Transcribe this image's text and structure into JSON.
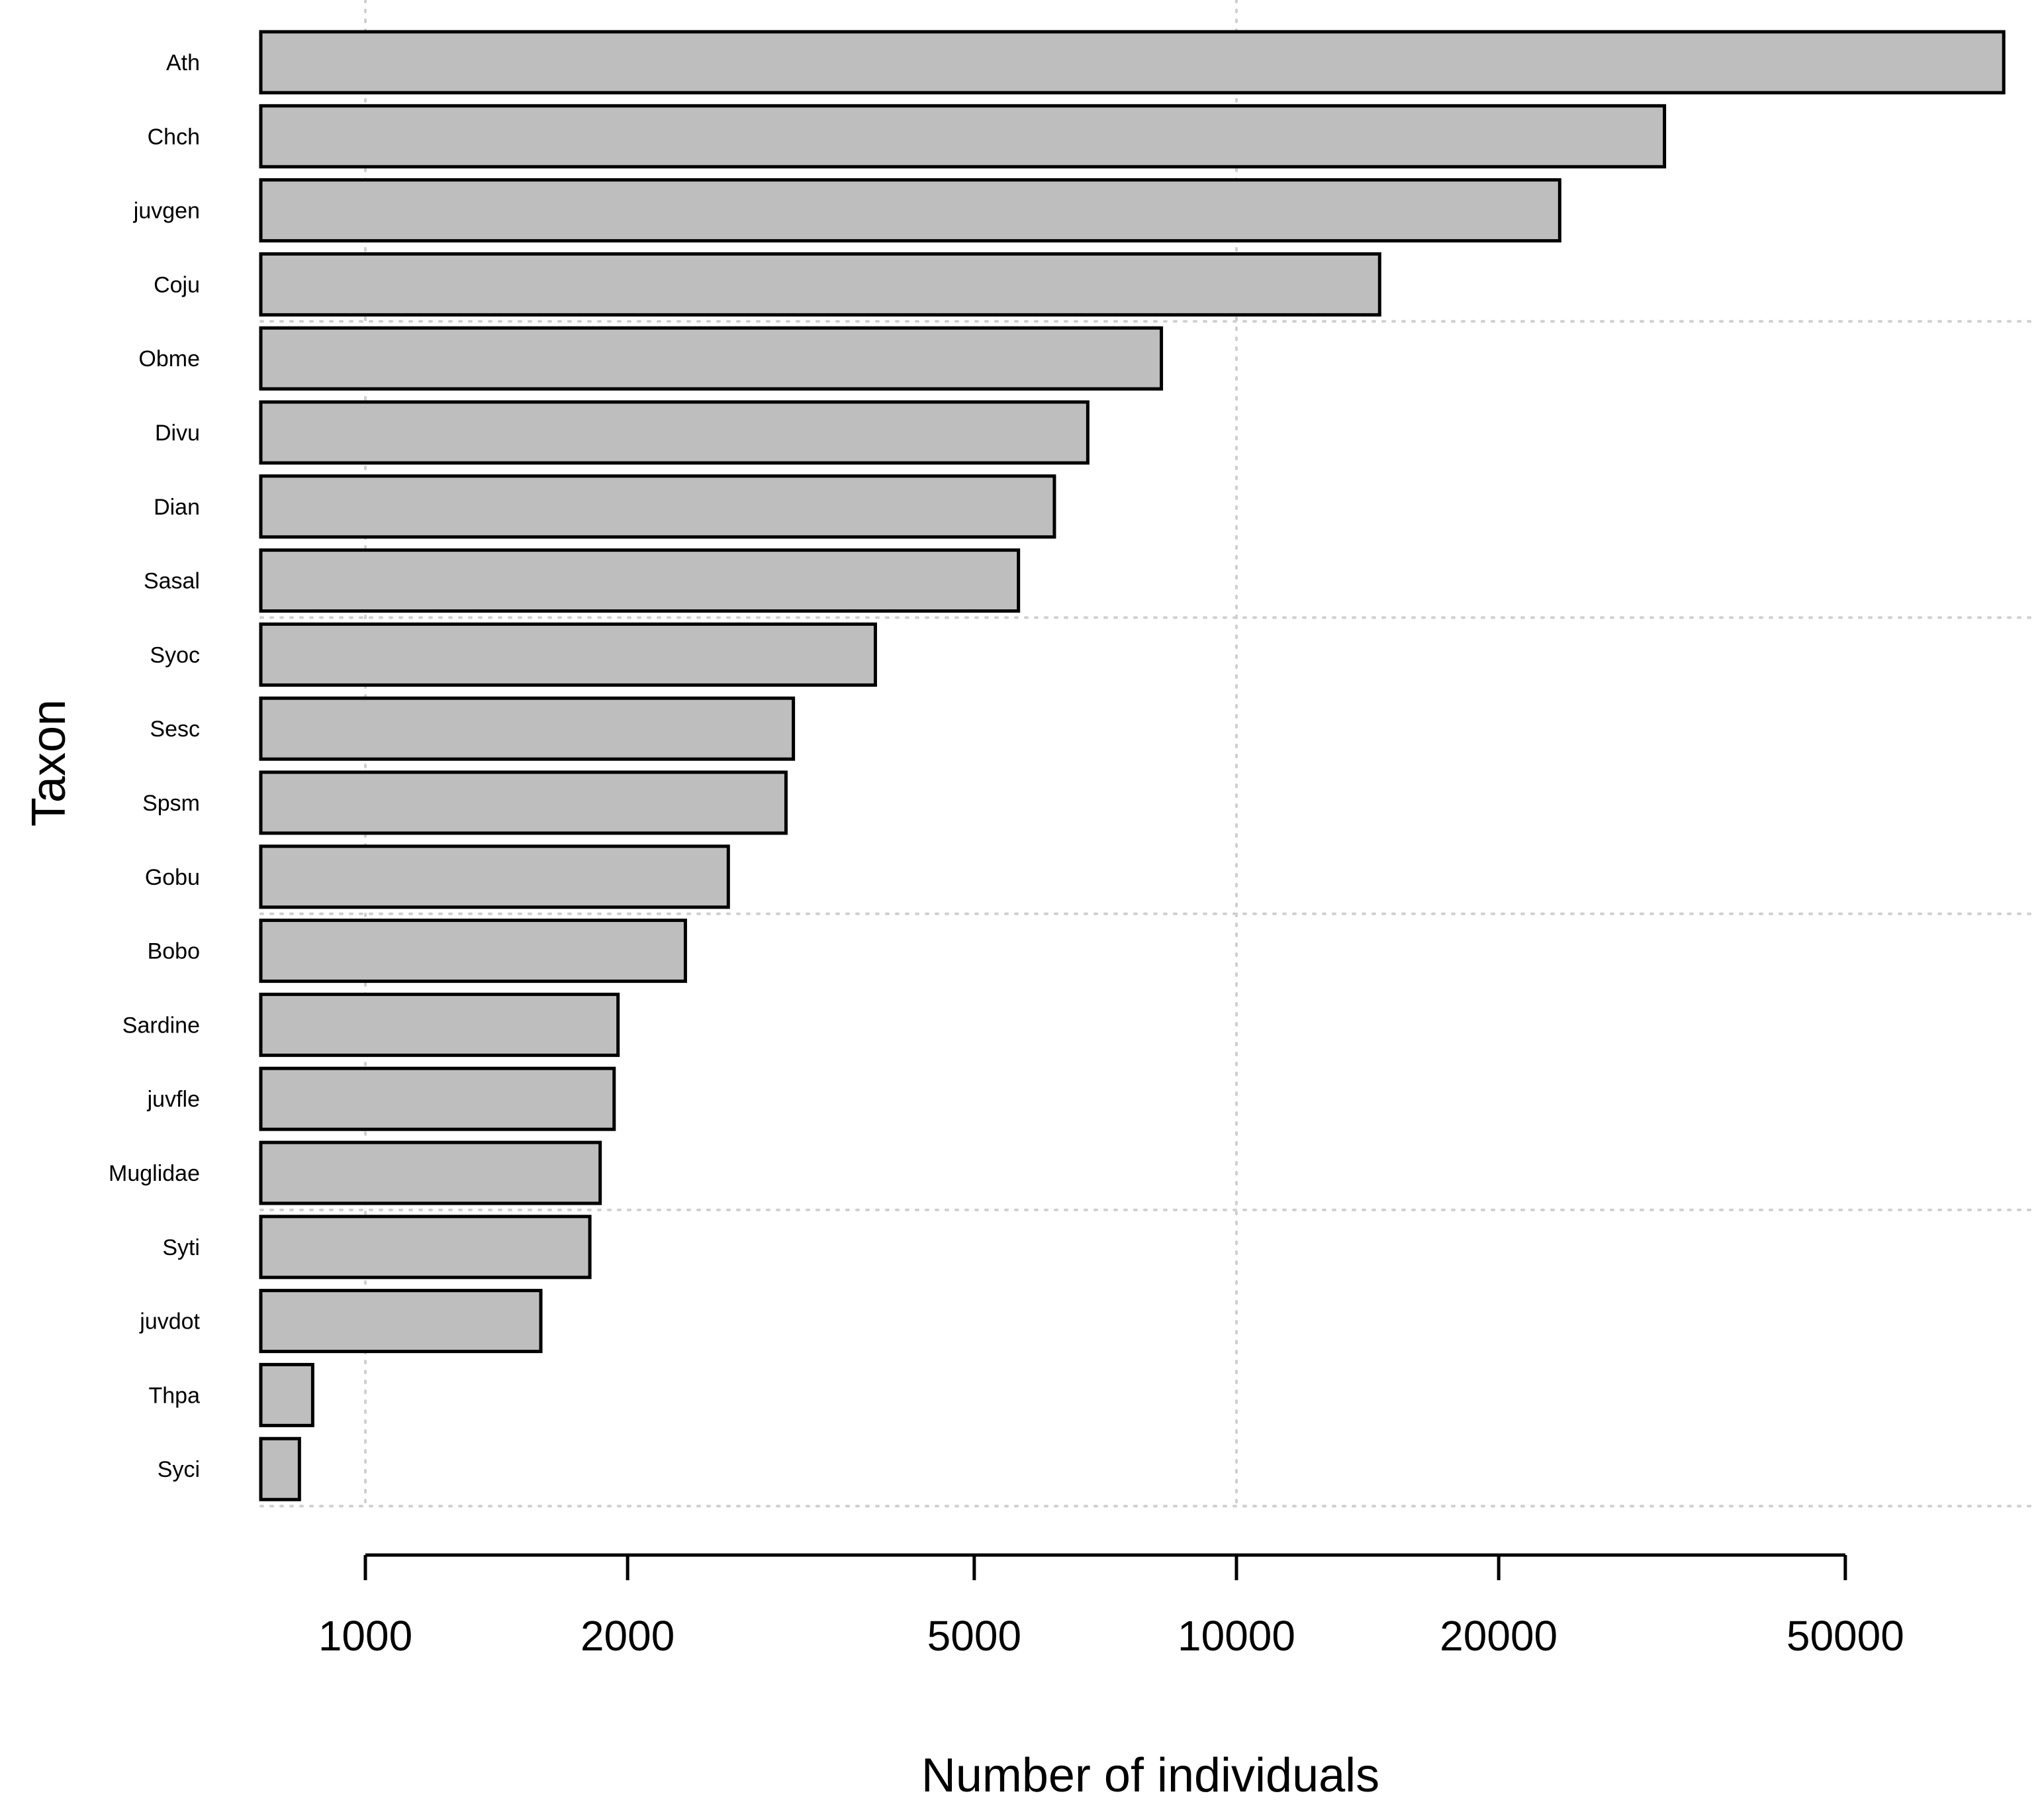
{
  "chart_data": {
    "type": "bar",
    "orientation": "horizontal",
    "categories": [
      "Ath",
      "Chch",
      "juvgen",
      "Coju",
      "Obme",
      "Divu",
      "Dian",
      "Sasal",
      "Syoc",
      "Sesc",
      "Spsm",
      "Gobu",
      "Bobo",
      "Sardine",
      "juvfle",
      "Muglidae",
      "Syti",
      "juvdot",
      "Thpa",
      "Syci"
    ],
    "values": [
      76000,
      31000,
      23500,
      14600,
      8200,
      6750,
      6180,
      5620,
      3850,
      3100,
      3040,
      2610,
      2330,
      1950,
      1930,
      1860,
      1810,
      1590,
      870,
      840
    ],
    "xlabel": "Number of individuals",
    "ylabel": "Taxon",
    "x_scale": "log",
    "xlim": [
      760,
      76000
    ],
    "x_ticks": [
      1000,
      2000,
      5000,
      10000,
      20000,
      50000
    ],
    "x_tick_labels": [
      "1000",
      "2000",
      "5000",
      "10000",
      "20000",
      "50000"
    ],
    "bar_color": "#bebebe",
    "bar_edge_color": "#000000",
    "grid": true,
    "grid_color": "#cfcfcf",
    "legend": "none"
  }
}
